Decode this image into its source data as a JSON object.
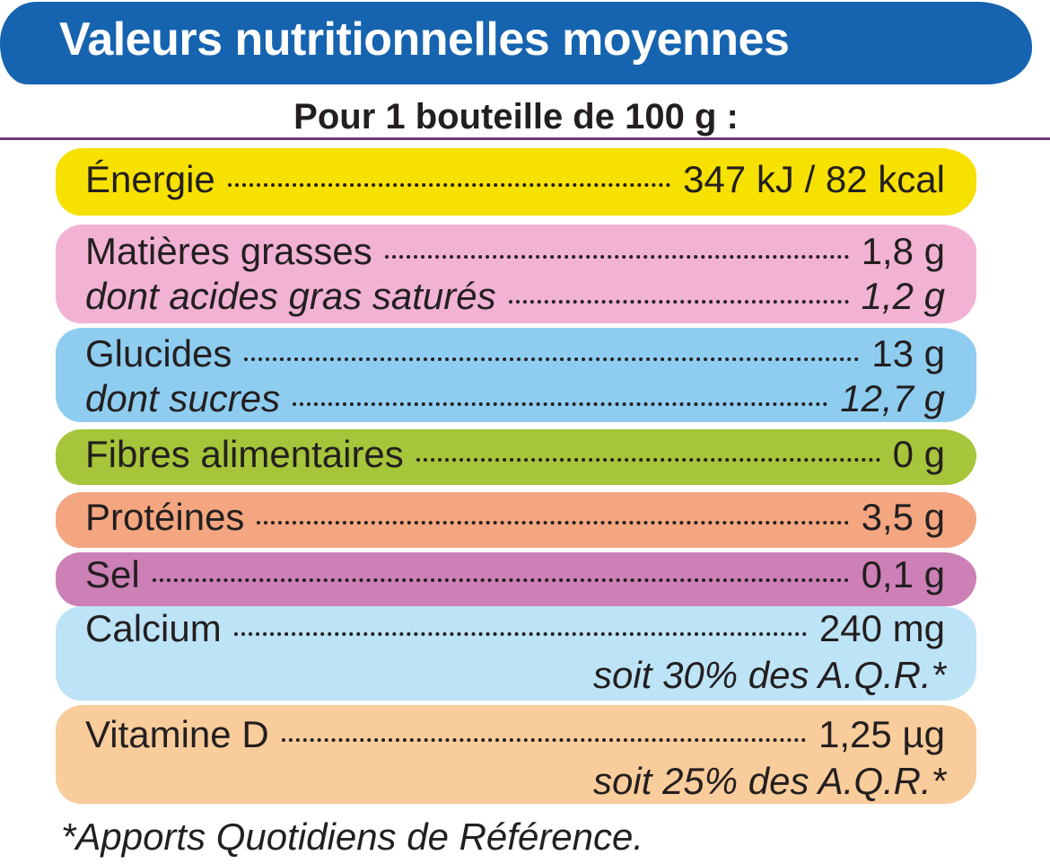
{
  "header": {
    "title": "Valeurs nutritionnelles moyennes",
    "subtitle": "Pour 1 bouteille de 100 g :"
  },
  "rows": [
    {
      "label": "Énergie",
      "value": "347 kJ / 82 kcal",
      "color": "#f7e100"
    },
    {
      "label": "Matières grasses",
      "value": "1,8 g",
      "color": "#f2b2d4",
      "sub": {
        "label": "dont acides gras saturés",
        "value": "1,2 g"
      }
    },
    {
      "label": "Glucides",
      "value": "13 g",
      "color": "#8ecdf0",
      "sub": {
        "label": "dont sucres",
        "value": "12,7 g"
      }
    },
    {
      "label": "Fibres alimentaires",
      "value": "0 g",
      "color": "#a6c53a"
    },
    {
      "label": "Protéines",
      "value": "3,5 g",
      "color": "#f4a680"
    },
    {
      "label": "Sel",
      "value": "0,1 g",
      "color": "#cc80b6"
    },
    {
      "label": "Calcium",
      "value": "240 mg",
      "color": "#bde3f6",
      "note": "soit 30% des A.Q.R.*"
    },
    {
      "label": "Vitamine D",
      "value": "1,25 µg",
      "color": "#f9cc9b",
      "note": "soit 25% des A.Q.R.*"
    }
  ],
  "footnote": "*Apports Quotidiens de Référence."
}
